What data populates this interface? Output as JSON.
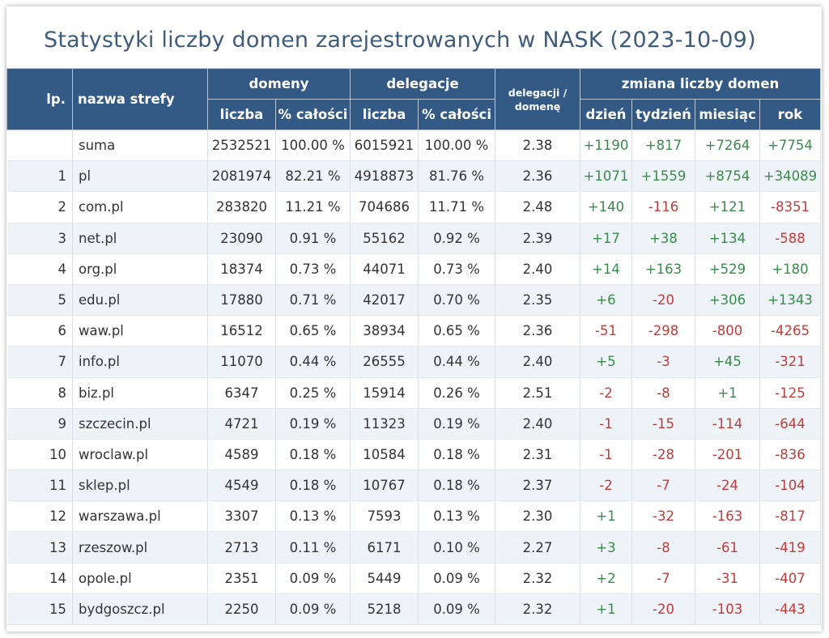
{
  "title": "Statystyki liczby domen zarejestrowanych w NASK (2023-10-09)",
  "colors": {
    "header_bg": "#335a85",
    "title": "#3e5b7a",
    "positive": "#3a8a4e",
    "negative": "#c23b3b",
    "row_alt": "#eef3f8"
  },
  "header": {
    "lp": "lp.",
    "zone_name": "nazwa strefy",
    "domains_group": "domeny",
    "delegations_group": "delegacje",
    "ratio_line1": "delegacji /",
    "ratio_line2": "domenę",
    "change_group": "zmiana liczby domen",
    "count": "liczba",
    "percent_total": "% całości",
    "count2": "liczba",
    "percent_total2": "% całości",
    "day": "dzień",
    "week": "tydzień",
    "month": "miesiąc",
    "year": "rok"
  },
  "rows": [
    {
      "lp": "",
      "name": "suma",
      "dom": "2532521",
      "dom_pct": "100.00 %",
      "del": "6015921",
      "del_pct": "100.00 %",
      "ratio": "2.38",
      "day": "+1190",
      "week": "+817",
      "month": "+7264",
      "year": "+7754"
    },
    {
      "lp": "1",
      "name": "pl",
      "dom": "2081974",
      "dom_pct": "82.21 %",
      "del": "4918873",
      "del_pct": "81.76 %",
      "ratio": "2.36",
      "day": "+1071",
      "week": "+1559",
      "month": "+8754",
      "year": "+34089"
    },
    {
      "lp": "2",
      "name": "com.pl",
      "dom": "283820",
      "dom_pct": "11.21 %",
      "del": "704686",
      "del_pct": "11.71 %",
      "ratio": "2.48",
      "day": "+140",
      "week": "-116",
      "month": "+121",
      "year": "-8351"
    },
    {
      "lp": "3",
      "name": "net.pl",
      "dom": "23090",
      "dom_pct": "0.91 %",
      "del": "55162",
      "del_pct": "0.92 %",
      "ratio": "2.39",
      "day": "+17",
      "week": "+38",
      "month": "+134",
      "year": "-588"
    },
    {
      "lp": "4",
      "name": "org.pl",
      "dom": "18374",
      "dom_pct": "0.73 %",
      "del": "44071",
      "del_pct": "0.73 %",
      "ratio": "2.40",
      "day": "+14",
      "week": "+163",
      "month": "+529",
      "year": "+180"
    },
    {
      "lp": "5",
      "name": "edu.pl",
      "dom": "17880",
      "dom_pct": "0.71 %",
      "del": "42017",
      "del_pct": "0.70 %",
      "ratio": "2.35",
      "day": "+6",
      "week": "-20",
      "month": "+306",
      "year": "+1343"
    },
    {
      "lp": "6",
      "name": "waw.pl",
      "dom": "16512",
      "dom_pct": "0.65 %",
      "del": "38934",
      "del_pct": "0.65 %",
      "ratio": "2.36",
      "day": "-51",
      "week": "-298",
      "month": "-800",
      "year": "-4265"
    },
    {
      "lp": "7",
      "name": "info.pl",
      "dom": "11070",
      "dom_pct": "0.44 %",
      "del": "26555",
      "del_pct": "0.44 %",
      "ratio": "2.40",
      "day": "+5",
      "week": "-3",
      "month": "+45",
      "year": "-321"
    },
    {
      "lp": "8",
      "name": "biz.pl",
      "dom": "6347",
      "dom_pct": "0.25 %",
      "del": "15914",
      "del_pct": "0.26 %",
      "ratio": "2.51",
      "day": "-2",
      "week": "-8",
      "month": "+1",
      "year": "-125"
    },
    {
      "lp": "9",
      "name": "szczecin.pl",
      "dom": "4721",
      "dom_pct": "0.19 %",
      "del": "11323",
      "del_pct": "0.19 %",
      "ratio": "2.40",
      "day": "-1",
      "week": "-15",
      "month": "-114",
      "year": "-644"
    },
    {
      "lp": "10",
      "name": "wroclaw.pl",
      "dom": "4589",
      "dom_pct": "0.18 %",
      "del": "10584",
      "del_pct": "0.18 %",
      "ratio": "2.31",
      "day": "-1",
      "week": "-28",
      "month": "-201",
      "year": "-836"
    },
    {
      "lp": "11",
      "name": "sklep.pl",
      "dom": "4549",
      "dom_pct": "0.18 %",
      "del": "10767",
      "del_pct": "0.18 %",
      "ratio": "2.37",
      "day": "-2",
      "week": "-7",
      "month": "-24",
      "year": "-104"
    },
    {
      "lp": "12",
      "name": "warszawa.pl",
      "dom": "3307",
      "dom_pct": "0.13 %",
      "del": "7593",
      "del_pct": "0.13 %",
      "ratio": "2.30",
      "day": "+1",
      "week": "-32",
      "month": "-163",
      "year": "-817"
    },
    {
      "lp": "13",
      "name": "rzeszow.pl",
      "dom": "2713",
      "dom_pct": "0.11 %",
      "del": "6171",
      "del_pct": "0.10 %",
      "ratio": "2.27",
      "day": "+3",
      "week": "-8",
      "month": "-61",
      "year": "-419"
    },
    {
      "lp": "14",
      "name": "opole.pl",
      "dom": "2351",
      "dom_pct": "0.09 %",
      "del": "5449",
      "del_pct": "0.09 %",
      "ratio": "2.32",
      "day": "+2",
      "week": "-7",
      "month": "-31",
      "year": "-407"
    },
    {
      "lp": "15",
      "name": "bydgoszcz.pl",
      "dom": "2250",
      "dom_pct": "0.09 %",
      "del": "5218",
      "del_pct": "0.09 %",
      "ratio": "2.32",
      "day": "+1",
      "week": "-20",
      "month": "-103",
      "year": "-443"
    }
  ]
}
